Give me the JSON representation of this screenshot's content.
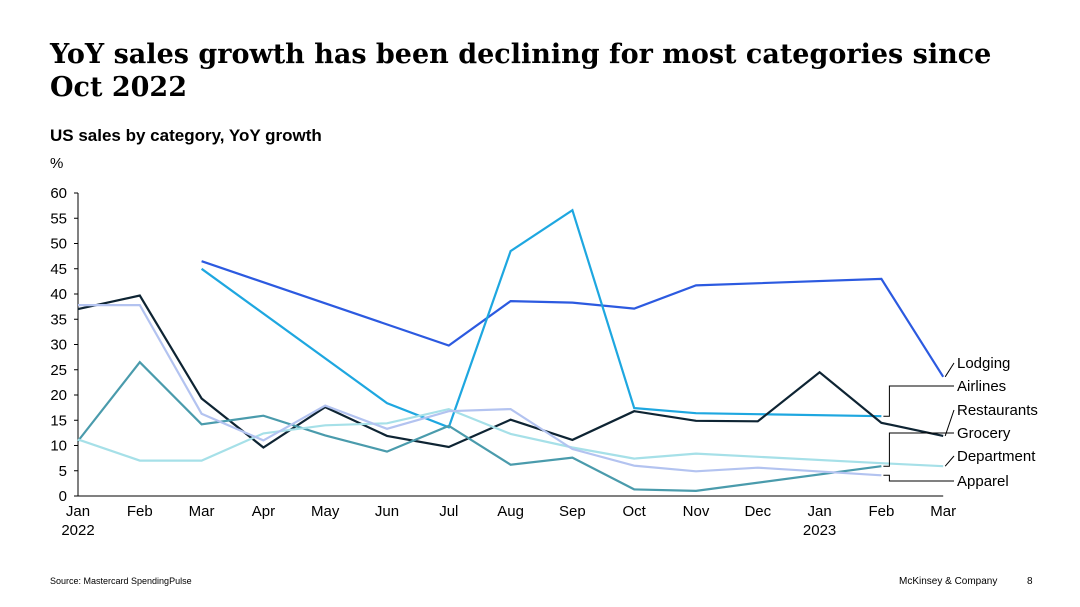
{
  "slide": {
    "title": "YoY sales growth has been declining for most categories since Oct 2022",
    "source": "Source: Mastercard SpendingPulse",
    "brand": "McKinsey & Company",
    "page_number": "8"
  },
  "chart_data": {
    "type": "line",
    "title": "US sales by category, YoY growth",
    "ylabel": "%",
    "xlabel": "",
    "ylim": [
      0,
      60
    ],
    "yticks": [
      0,
      5,
      10,
      15,
      20,
      25,
      30,
      35,
      40,
      45,
      50,
      55,
      60
    ],
    "categories": [
      "Jan",
      "Feb",
      "Mar",
      "Apr",
      "May",
      "Jun",
      "Jul",
      "Aug",
      "Sep",
      "Oct",
      "Nov",
      "Dec",
      "Jan",
      "Feb",
      "Mar"
    ],
    "year_labels": [
      {
        "index": 0,
        "label": "2022"
      },
      {
        "index": 12,
        "label": "2023"
      }
    ],
    "grid": false,
    "series": [
      {
        "name": "Lodging",
        "color": "#2c5ae0",
        "values": [
          null,
          null,
          46.5,
          null,
          null,
          null,
          29.8,
          38.6,
          38.3,
          37.1,
          41.7,
          null,
          null,
          43.0,
          23.6
        ]
      },
      {
        "name": "Airlines",
        "color": "#1ea7e0",
        "values": [
          null,
          null,
          45.0,
          null,
          null,
          18.4,
          13.6,
          48.5,
          56.6,
          17.4,
          16.4,
          16.2,
          null,
          15.8,
          null
        ]
      },
      {
        "name": "Restaurants",
        "color": "#0e2433",
        "values": [
          37.0,
          39.7,
          19.3,
          9.6,
          17.6,
          11.9,
          9.7,
          15.1,
          11.1,
          16.8,
          14.9,
          14.8,
          24.5,
          14.5,
          11.9
        ]
      },
      {
        "name": "Grocery",
        "color": "#4a9bac",
        "values": [
          10.9,
          26.5,
          14.2,
          15.9,
          12.0,
          8.8,
          13.9,
          6.2,
          7.6,
          1.3,
          1.0,
          null,
          null,
          5.9,
          null
        ]
      },
      {
        "name": "Department",
        "color": "#a6e0e8",
        "values": [
          11.2,
          7.0,
          7.0,
          12.4,
          14.0,
          14.4,
          17.2,
          12.3,
          9.6,
          7.4,
          8.4,
          null,
          null,
          6.5,
          5.9
        ]
      },
      {
        "name": "Apparel",
        "color": "#b3c3f0",
        "values": [
          37.8,
          37.8,
          16.3,
          11.0,
          17.9,
          13.3,
          16.8,
          17.2,
          9.3,
          6.0,
          4.9,
          5.6,
          null,
          4.1,
          null
        ]
      }
    ]
  }
}
